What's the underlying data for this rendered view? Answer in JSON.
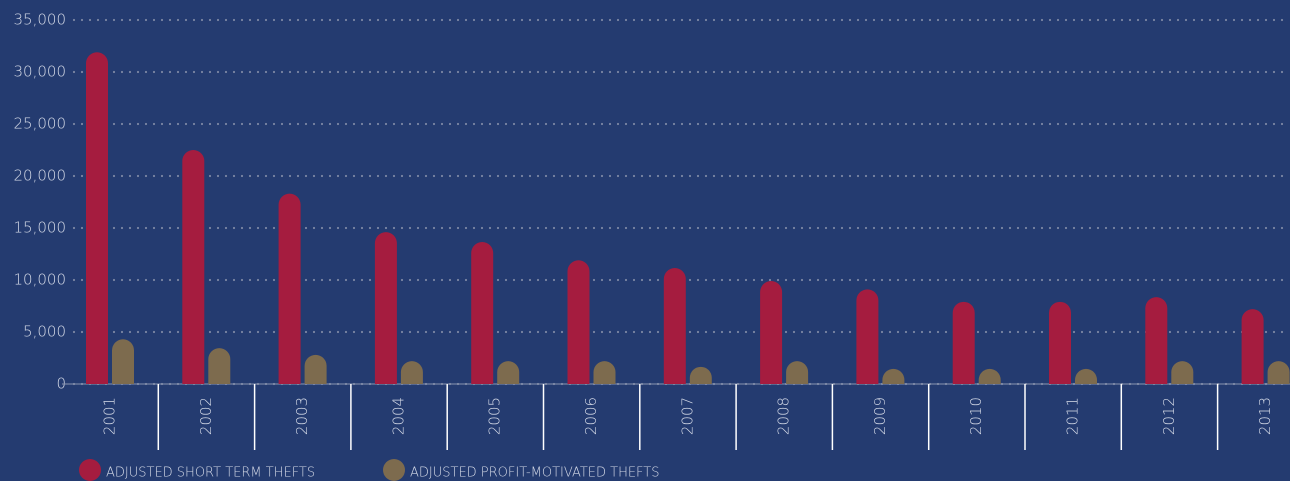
{
  "chart_data": {
    "type": "bar",
    "categories": [
      "2001",
      "2002",
      "2003",
      "2004",
      "2005",
      "2006",
      "2007",
      "2008",
      "2009",
      "2010",
      "2011",
      "2012",
      "2013"
    ],
    "series": [
      {
        "name": "ADJUSTED SHORT TERM THEFTS",
        "color": "#a51c3f",
        "values": [
          31900,
          22500,
          18300,
          14600,
          13650,
          11900,
          11150,
          9900,
          9100,
          7900,
          7900,
          8350,
          7200
        ]
      },
      {
        "name": "ADJUSTED PROFIT-MOTIVATED THEFTS",
        "color": "#7d6b4e",
        "values": [
          4300,
          3450,
          2800,
          2200,
          2200,
          2200,
          1650,
          2200,
          1450,
          1450,
          1450,
          2200,
          2200
        ]
      }
    ],
    "ylim": [
      0,
      35000
    ],
    "yticks": [
      0,
      {
        "value": 5000,
        "label": "5,000"
      },
      {
        "value": 10000,
        "label": "10,000"
      },
      {
        "value": 15000,
        "label": "15,000"
      },
      {
        "value": 20000,
        "label": "20,000"
      },
      {
        "value": 25000,
        "label": "25,000"
      },
      {
        "value": 30000,
        "label": "30,000"
      },
      {
        "value": 35000,
        "label": "35,000"
      }
    ],
    "grid": true
  }
}
